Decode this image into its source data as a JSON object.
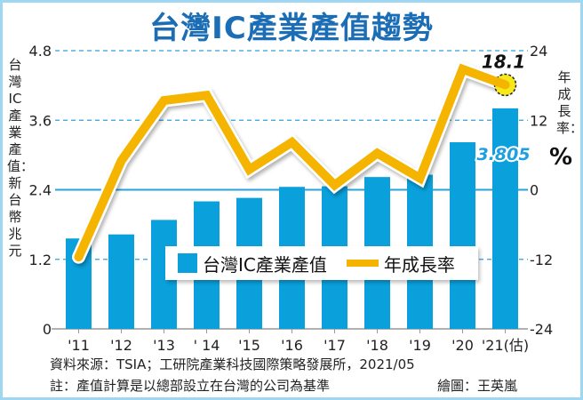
{
  "title": "台灣IC產業產值趨勢",
  "left_axis_label": "台灣IC產業產值：新台幣兆元",
  "right_axis_label": "年成長率：",
  "right_axis_unit": "%",
  "legend": {
    "bar_label": "台灣IC產業產值",
    "line_label": "年成長率"
  },
  "annotations": {
    "last_growth": "18.1",
    "last_value": "3.805"
  },
  "footer": {
    "source": "資料來源：TSIA；工研院產業科技國際策略發展所，2021/05",
    "note": "註：產值計算是以總部設立在台灣的公司為基準",
    "credit": "繪圖：王英嵐"
  },
  "colors": {
    "bar": "#0aa0dc",
    "line": "#f5b400",
    "title": "#1b6eb5",
    "grid": "#2aa3dd",
    "highlight": "#f7e81c",
    "annotation_value": "#1ea0e0"
  },
  "chart_data": {
    "type": "bar+line",
    "title": "台灣IC產業產值趨勢",
    "categories": [
      "'11",
      "'12",
      "'13",
      "' 14",
      "'15",
      "'16",
      "'17",
      "'18",
      "'19",
      "'20",
      "'21(估)"
    ],
    "series": [
      {
        "name": "台灣IC產業產值",
        "type": "bar",
        "axis": "left",
        "unit": "新台幣兆元",
        "values": [
          1.56,
          1.63,
          1.88,
          2.2,
          2.26,
          2.45,
          2.46,
          2.62,
          2.66,
          3.22,
          3.805
        ]
      },
      {
        "name": "年成長率",
        "type": "line",
        "axis": "right",
        "unit": "%",
        "values": [
          -11.6,
          5.0,
          15.4,
          16.3,
          3.5,
          8.2,
          0.8,
          6.3,
          2.0,
          20.8,
          18.1
        ]
      }
    ],
    "ylabel": "台灣IC產業產值：新台幣兆元",
    "ylabel_right": "年成長率：%",
    "ylim": [
      0,
      4.8
    ],
    "yticks": [
      "0",
      "1.2",
      "2.4",
      "3.6",
      "4.8"
    ],
    "ylim_right": [
      -24,
      24
    ],
    "yticks_right": [
      "-24",
      "-12",
      "0",
      "12",
      "24"
    ],
    "grid": true,
    "legend_position": "inside-lower-center"
  }
}
